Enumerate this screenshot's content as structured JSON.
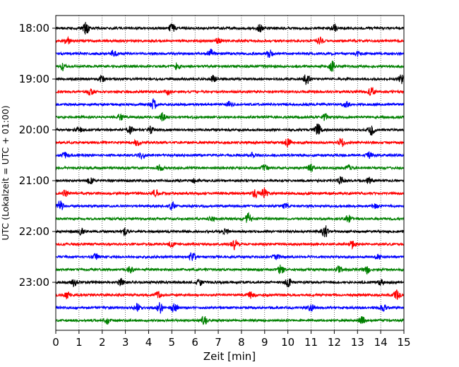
{
  "chart_data": {
    "type": "line",
    "title": "",
    "xlabel": "Zeit  [min]",
    "ylabel": "UTC (Lokalzeit = UTC + 01:00)",
    "xlim": [
      0,
      15
    ],
    "x_ticks": [
      "0",
      "1",
      "2",
      "3",
      "4",
      "5",
      "6",
      "7",
      "8",
      "9",
      "10",
      "11",
      "12",
      "13",
      "14",
      "15"
    ],
    "y_tick_labels": [
      "18:00",
      "19:00",
      "20:00",
      "21:00",
      "22:00",
      "23:00"
    ],
    "grid": "vertical dotted",
    "trace_interval_minutes": 15,
    "trace_count": 24,
    "trace_colors": [
      "#000000",
      "#ff0000",
      "#0000ff",
      "#008000"
    ],
    "traces": [
      {
        "start": "18:00",
        "color_index": 0,
        "bursts": [
          [
            1.3,
            1.0
          ],
          [
            5.0,
            0.8
          ],
          [
            8.8,
            0.6
          ],
          [
            12.0,
            0.6
          ]
        ]
      },
      {
        "start": "18:15",
        "color_index": 1,
        "bursts": [
          [
            0.5,
            0.5
          ],
          [
            7.0,
            0.5
          ],
          [
            11.4,
            0.5
          ]
        ]
      },
      {
        "start": "18:30",
        "color_index": 2,
        "bursts": [
          [
            2.5,
            0.5
          ],
          [
            6.7,
            0.7
          ],
          [
            9.2,
            0.6
          ],
          [
            13.0,
            0.4
          ]
        ]
      },
      {
        "start": "18:45",
        "color_index": 3,
        "bursts": [
          [
            0.3,
            0.6
          ],
          [
            5.2,
            0.5
          ],
          [
            11.9,
            0.9
          ]
        ]
      },
      {
        "start": "19:00",
        "color_index": 0,
        "bursts": [
          [
            2.0,
            0.5
          ],
          [
            6.8,
            0.5
          ],
          [
            10.8,
            0.9
          ],
          [
            14.9,
            0.7
          ]
        ]
      },
      {
        "start": "19:15",
        "color_index": 1,
        "bursts": [
          [
            1.5,
            0.6
          ],
          [
            4.8,
            0.4
          ],
          [
            13.6,
            0.8
          ]
        ]
      },
      {
        "start": "19:30",
        "color_index": 2,
        "bursts": [
          [
            4.2,
            0.9
          ],
          [
            7.5,
            0.5
          ],
          [
            12.5,
            0.5
          ]
        ]
      },
      {
        "start": "19:45",
        "color_index": 3,
        "bursts": [
          [
            2.8,
            0.6
          ],
          [
            4.6,
            0.7
          ],
          [
            11.6,
            0.5
          ]
        ]
      },
      {
        "start": "20:00",
        "color_index": 0,
        "bursts": [
          [
            1.0,
            0.5
          ],
          [
            3.2,
            0.6
          ],
          [
            4.1,
            0.6
          ],
          [
            11.3,
            1.0
          ],
          [
            13.6,
            0.8
          ]
        ]
      },
      {
        "start": "20:15",
        "color_index": 1,
        "bursts": [
          [
            3.5,
            0.5
          ],
          [
            10.0,
            0.7
          ],
          [
            12.3,
            0.7
          ]
        ]
      },
      {
        "start": "20:30",
        "color_index": 2,
        "bursts": [
          [
            0.4,
            0.6
          ],
          [
            3.7,
            0.6
          ],
          [
            8.5,
            0.4
          ],
          [
            13.5,
            0.5
          ]
        ]
      },
      {
        "start": "20:45",
        "color_index": 3,
        "bursts": [
          [
            4.5,
            0.5
          ],
          [
            9.0,
            0.5
          ],
          [
            11.0,
            0.6
          ],
          [
            12.6,
            0.5
          ]
        ]
      },
      {
        "start": "21:00",
        "color_index": 0,
        "bursts": [
          [
            1.5,
            0.6
          ],
          [
            6.0,
            0.4
          ],
          [
            12.3,
            0.7
          ],
          [
            13.5,
            0.5
          ]
        ]
      },
      {
        "start": "21:15",
        "color_index": 1,
        "bursts": [
          [
            0.4,
            0.5
          ],
          [
            4.3,
            0.6
          ],
          [
            8.6,
            0.8
          ],
          [
            9.0,
            1.0
          ]
        ]
      },
      {
        "start": "21:30",
        "color_index": 2,
        "bursts": [
          [
            0.2,
            0.8
          ],
          [
            5.0,
            0.7
          ],
          [
            9.9,
            0.5
          ],
          [
            13.7,
            0.4
          ]
        ]
      },
      {
        "start": "21:45",
        "color_index": 3,
        "bursts": [
          [
            6.7,
            0.5
          ],
          [
            8.3,
            1.0
          ],
          [
            12.6,
            0.6
          ]
        ]
      },
      {
        "start": "22:00",
        "color_index": 0,
        "bursts": [
          [
            1.1,
            0.6
          ],
          [
            3.0,
            0.6
          ],
          [
            7.3,
            0.5
          ],
          [
            11.6,
            1.0
          ]
        ]
      },
      {
        "start": "22:15",
        "color_index": 1,
        "bursts": [
          [
            5.0,
            0.5
          ],
          [
            7.7,
            0.9
          ],
          [
            12.8,
            0.6
          ]
        ]
      },
      {
        "start": "22:30",
        "color_index": 2,
        "bursts": [
          [
            1.7,
            0.5
          ],
          [
            5.9,
            0.8
          ],
          [
            9.5,
            0.5
          ],
          [
            13.9,
            0.4
          ]
        ]
      },
      {
        "start": "22:45",
        "color_index": 3,
        "bursts": [
          [
            3.2,
            0.5
          ],
          [
            9.7,
            0.8
          ],
          [
            12.2,
            0.5
          ],
          [
            13.4,
            0.6
          ]
        ]
      },
      {
        "start": "23:00",
        "color_index": 0,
        "bursts": [
          [
            0.8,
            0.6
          ],
          [
            2.8,
            0.6
          ],
          [
            6.2,
            0.5
          ],
          [
            10.0,
            0.7
          ],
          [
            14.0,
            0.5
          ]
        ]
      },
      {
        "start": "23:15",
        "color_index": 1,
        "bursts": [
          [
            0.5,
            0.5
          ],
          [
            4.4,
            0.6
          ],
          [
            8.4,
            0.5
          ],
          [
            14.7,
            0.8
          ]
        ]
      },
      {
        "start": "23:30",
        "color_index": 2,
        "bursts": [
          [
            3.5,
            0.7
          ],
          [
            4.5,
            0.9
          ],
          [
            5.1,
            0.8
          ],
          [
            11.0,
            0.6
          ],
          [
            14.1,
            0.5
          ]
        ]
      },
      {
        "start": "23:45",
        "color_index": 3,
        "bursts": [
          [
            2.2,
            0.5
          ],
          [
            6.4,
            0.8
          ],
          [
            13.2,
            0.6
          ]
        ]
      }
    ]
  }
}
